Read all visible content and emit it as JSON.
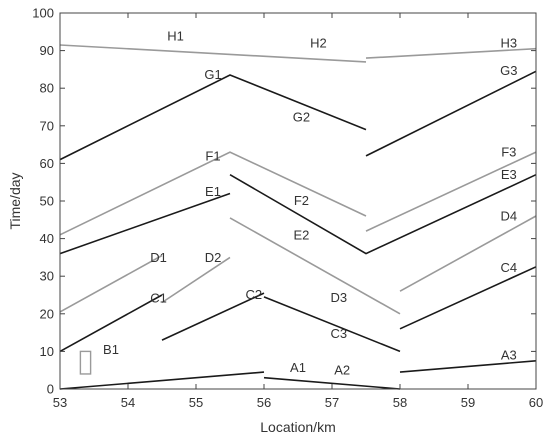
{
  "chart_data": {
    "type": "line",
    "title": "",
    "xlabel": "Location/km",
    "ylabel": "Time/day",
    "xlim": [
      53,
      60
    ],
    "ylim": [
      0,
      100
    ],
    "xticks": [
      53,
      54,
      55,
      56,
      57,
      58,
      59,
      60
    ],
    "yticks": [
      0,
      10,
      20,
      30,
      40,
      50,
      60,
      70,
      80,
      90,
      100
    ],
    "grid": false,
    "legend": "none",
    "colors": {
      "dark": "#1a1a1a",
      "light": "#9a9a9a",
      "axis": "#444444"
    },
    "series": [
      {
        "points": [
          [
            53,
            0
          ],
          [
            56,
            4.5
          ]
        ],
        "tone": "dark"
      },
      {
        "points": [
          [
            56,
            3
          ],
          [
            58,
            0
          ]
        ],
        "tone": "dark"
      },
      {
        "points": [
          [
            58,
            4.5
          ],
          [
            60,
            7.5
          ]
        ],
        "tone": "dark"
      },
      {
        "points": [
          [
            53,
            10
          ],
          [
            54.5,
            25
          ]
        ],
        "tone": "dark"
      },
      {
        "points": [
          [
            54.5,
            13
          ],
          [
            56,
            25.5
          ]
        ],
        "tone": "dark"
      },
      {
        "points": [
          [
            56,
            24.5
          ],
          [
            58,
            10
          ]
        ],
        "tone": "dark"
      },
      {
        "points": [
          [
            58,
            16
          ],
          [
            60,
            32.5
          ]
        ],
        "tone": "dark"
      },
      {
        "points": [
          [
            53,
            20.5
          ],
          [
            54.5,
            35.5
          ]
        ],
        "tone": "light"
      },
      {
        "points": [
          [
            54.5,
            23
          ],
          [
            55.5,
            35
          ]
        ],
        "tone": "light"
      },
      {
        "points": [
          [
            55.5,
            45.5
          ],
          [
            58,
            20
          ]
        ],
        "tone": "light"
      },
      {
        "points": [
          [
            58,
            26
          ],
          [
            60,
            46
          ]
        ],
        "tone": "light"
      },
      {
        "points": [
          [
            53,
            36
          ],
          [
            55.5,
            52
          ]
        ],
        "tone": "dark"
      },
      {
        "points": [
          [
            55.5,
            57
          ],
          [
            57.5,
            36
          ],
          [
            60,
            57
          ]
        ],
        "tone": "dark"
      },
      {
        "points": [
          [
            53,
            41
          ],
          [
            55.5,
            63
          ],
          [
            57.5,
            46
          ]
        ],
        "tone": "light"
      },
      {
        "points": [
          [
            57.5,
            42
          ],
          [
            60,
            63
          ]
        ],
        "tone": "light"
      },
      {
        "points": [
          [
            53,
            61
          ],
          [
            55.5,
            83.5
          ],
          [
            57.5,
            69
          ]
        ],
        "tone": "dark"
      },
      {
        "points": [
          [
            57.5,
            62
          ],
          [
            60,
            84.5
          ]
        ],
        "tone": "dark"
      },
      {
        "points": [
          [
            53,
            91.5
          ],
          [
            57.5,
            87
          ]
        ],
        "tone": "light"
      },
      {
        "points": [
          [
            57.5,
            88
          ],
          [
            60,
            90.5
          ]
        ],
        "tone": "light"
      }
    ],
    "rect": {
      "x": [
        53.3,
        53.45
      ],
      "y": [
        4,
        10
      ],
      "tone": "light"
    },
    "annotations": [
      {
        "text": "A1",
        "x": 56.5,
        "y": 4.5
      },
      {
        "text": "A2",
        "x": 57.15,
        "y": 3.8
      },
      {
        "text": "A3",
        "x": 59.6,
        "y": 7.8
      },
      {
        "text": "B1",
        "x": 53.75,
        "y": 9.3
      },
      {
        "text": "C1",
        "x": 54.45,
        "y": 23
      },
      {
        "text": "C2",
        "x": 55.85,
        "y": 24
      },
      {
        "text": "C3",
        "x": 57.1,
        "y": 13.6
      },
      {
        "text": "C4",
        "x": 59.6,
        "y": 31.1
      },
      {
        "text": "D1",
        "x": 54.45,
        "y": 33.8
      },
      {
        "text": "D2",
        "x": 55.25,
        "y": 33.8
      },
      {
        "text": "D3",
        "x": 57.1,
        "y": 23.1
      },
      {
        "text": "D4",
        "x": 59.6,
        "y": 44.8
      },
      {
        "text": "E1",
        "x": 55.25,
        "y": 51.3
      },
      {
        "text": "E2",
        "x": 56.55,
        "y": 39.8
      },
      {
        "text": "E3",
        "x": 59.6,
        "y": 55.8
      },
      {
        "text": "F1",
        "x": 55.25,
        "y": 60.8
      },
      {
        "text": "F2",
        "x": 56.55,
        "y": 48.9
      },
      {
        "text": "F3",
        "x": 59.6,
        "y": 61.9
      },
      {
        "text": "G1",
        "x": 55.25,
        "y": 82.5
      },
      {
        "text": "G2",
        "x": 56.55,
        "y": 71.2
      },
      {
        "text": "G3",
        "x": 59.6,
        "y": 83.5
      },
      {
        "text": "H1",
        "x": 54.7,
        "y": 92.7
      },
      {
        "text": "H2",
        "x": 56.8,
        "y": 90.8
      },
      {
        "text": "H3",
        "x": 59.6,
        "y": 90.8
      }
    ]
  }
}
